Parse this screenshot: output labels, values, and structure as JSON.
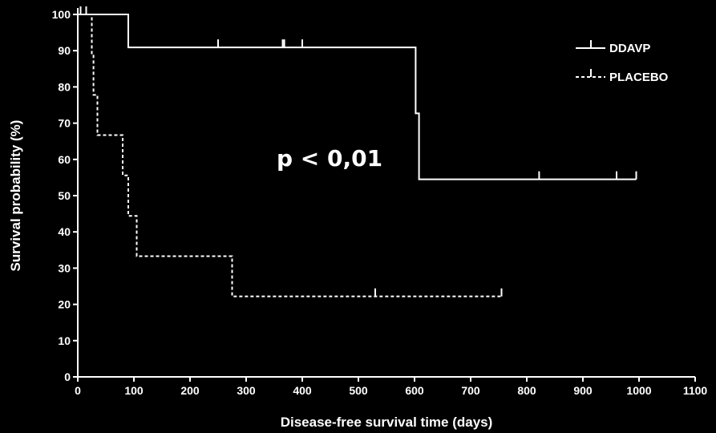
{
  "chart_data": {
    "type": "line",
    "subtype": "kaplan-meier",
    "xlabel": "Disease-free survival time (days)",
    "ylabel": "Survival probability (%)",
    "xlim": [
      0,
      1100
    ],
    "ylim": [
      0,
      100
    ],
    "xticks": [
      0,
      100,
      200,
      300,
      400,
      500,
      600,
      700,
      800,
      900,
      1000,
      1100
    ],
    "yticks": [
      0,
      10,
      20,
      30,
      40,
      50,
      60,
      70,
      80,
      90,
      100
    ],
    "grid": false,
    "legend_position": "top-right",
    "annotation": "p < 0,01",
    "background": "#000000",
    "foreground": "#ffffff",
    "series": [
      {
        "name": "DDAVP",
        "line_style": "solid",
        "steps": [
          {
            "x": 0,
            "y": 100
          },
          {
            "x": 90,
            "y": 90.9
          },
          {
            "x": 602,
            "y": 72.7
          },
          {
            "x": 608,
            "y": 54.5
          },
          {
            "x": 995,
            "y": 54.5
          }
        ],
        "censored": [
          {
            "x": 15,
            "y": 100
          },
          {
            "x": 250,
            "y": 90.9
          },
          {
            "x": 365,
            "y": 90.9
          },
          {
            "x": 368,
            "y": 90.9
          },
          {
            "x": 400,
            "y": 90.9
          },
          {
            "x": 822,
            "y": 54.5
          },
          {
            "x": 960,
            "y": 54.5
          },
          {
            "x": 995,
            "y": 54.5
          }
        ]
      },
      {
        "name": "PLACEBO",
        "line_style": "dashed",
        "steps": [
          {
            "x": 0,
            "y": 100
          },
          {
            "x": 25,
            "y": 88.9
          },
          {
            "x": 28,
            "y": 77.8
          },
          {
            "x": 35,
            "y": 66.7
          },
          {
            "x": 80,
            "y": 55.6
          },
          {
            "x": 90,
            "y": 44.4
          },
          {
            "x": 105,
            "y": 33.3
          },
          {
            "x": 275,
            "y": 22.2
          },
          {
            "x": 755,
            "y": 22.2
          }
        ],
        "censored": [
          {
            "x": 5,
            "y": 100
          },
          {
            "x": 530,
            "y": 22.2
          },
          {
            "x": 755,
            "y": 22.2
          }
        ]
      }
    ]
  }
}
